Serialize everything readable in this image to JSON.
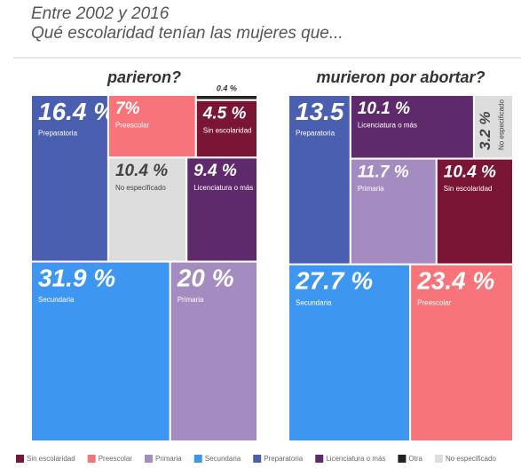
{
  "header": {
    "title": "Entre 2002 y 2016",
    "subtitle": "Qué escolaridad tenían las mujeres que..."
  },
  "chart_data": [
    {
      "type": "treemap",
      "title": "parieron?",
      "categories": [
        "Preparatoria",
        "Preescolar",
        "Otra",
        "Sin escolaridad",
        "No especificado",
        "Licenciatura o más",
        "Secundaria",
        "Primaria"
      ],
      "values": [
        16.4,
        7,
        0.4,
        4.5,
        10.4,
        9.4,
        31.9,
        20
      ],
      "value_labels": [
        "16.4 %",
        "7%",
        "0.4 %",
        "4.5 %",
        "10.4 %",
        "9.4 %",
        "31.9 %",
        "20 %"
      ],
      "colors": [
        "#4a5fb0",
        "#f7757a",
        "#222222",
        "#7a1535",
        "#dddddd",
        "#5e2a6c",
        "#3d97f0",
        "#a48cc0"
      ]
    },
    {
      "type": "treemap",
      "title": "murieron por abortar?",
      "categories": [
        "Preparatoria",
        "Licenciatura o más",
        "No especificado",
        "Primaria",
        "Sin escolaridad",
        "Secundaria",
        "Preescolar"
      ],
      "values": [
        13.5,
        10.1,
        3.2,
        11.7,
        10.4,
        27.7,
        23.4
      ],
      "value_labels": [
        "13.5 %",
        "10.1 %",
        "3.2 %",
        "11.7 %",
        "10.4 %",
        "27.7 %",
        "23.4 %"
      ],
      "colors": [
        "#4a5fb0",
        "#5e2a6c",
        "#dddddd",
        "#a48cc0",
        "#7a1535",
        "#3d97f0",
        "#f7757a"
      ]
    }
  ],
  "legend": [
    {
      "name": "Sin escolaridad",
      "color": "#7a1535"
    },
    {
      "name": "Preescolar",
      "color": "#f7757a"
    },
    {
      "name": "Primaria",
      "color": "#a48cc0"
    },
    {
      "name": "Secundaria",
      "color": "#3d97f0"
    },
    {
      "name": "Preparatoria",
      "color": "#4a5fb0"
    },
    {
      "name": "Licenciatura o más",
      "color": "#5e2a6c"
    },
    {
      "name": "Otra",
      "color": "#222222"
    },
    {
      "name": "No especificado",
      "color": "#dddddd"
    }
  ]
}
